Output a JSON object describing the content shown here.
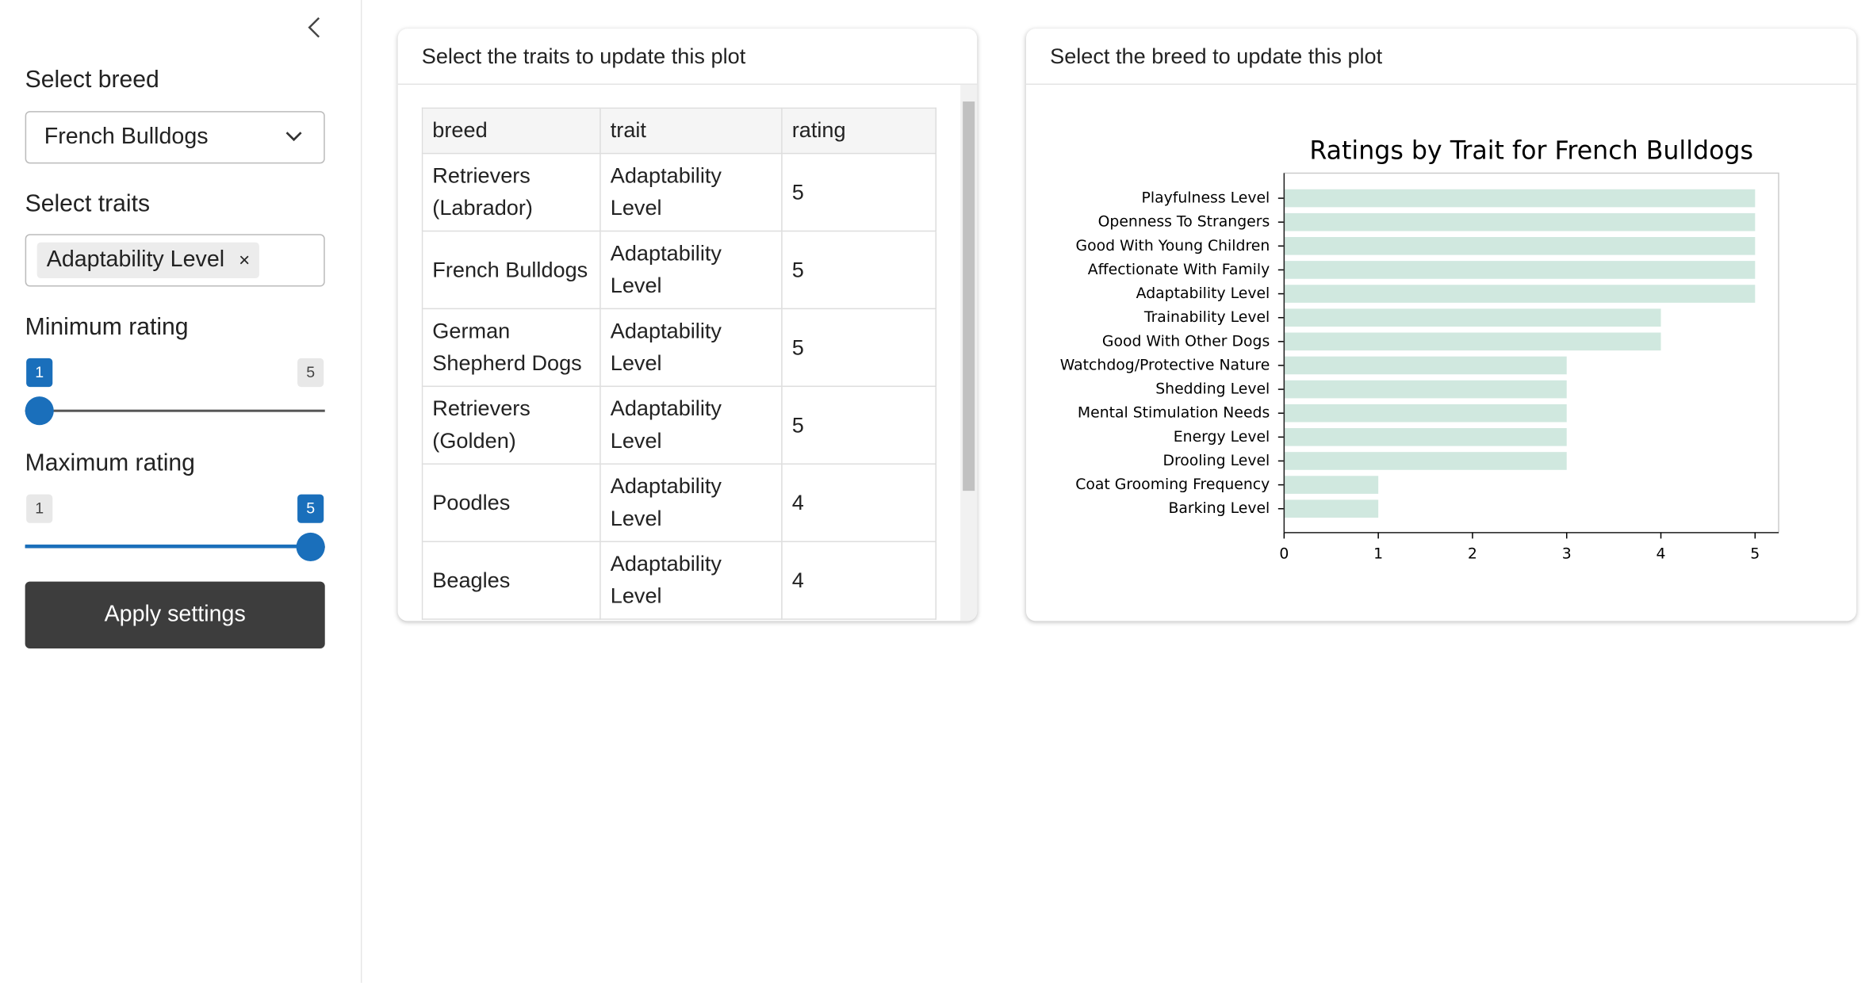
{
  "sidebar": {
    "breed_label": "Select breed",
    "breed_value": "French Bulldogs",
    "traits_label": "Select traits",
    "traits_selected": [
      "Adaptability Level"
    ],
    "sliders": [
      {
        "label": "Minimum rating",
        "min": 1,
        "max": 5,
        "value": 1
      },
      {
        "label": "Maximum rating",
        "min": 1,
        "max": 5,
        "value": 5
      }
    ],
    "button": "Apply settings"
  },
  "table_card": {
    "header": "Select the traits to update this plot",
    "columns": [
      "breed",
      "trait",
      "rating"
    ],
    "rows": [
      [
        "Retrievers (Labrador)",
        "Adaptability Level",
        5
      ],
      [
        "French Bulldogs",
        "Adaptability Level",
        5
      ],
      [
        "German Shepherd Dogs",
        "Adaptability Level",
        5
      ],
      [
        "Retrievers (Golden)",
        "Adaptability Level",
        5
      ],
      [
        "Poodles",
        "Adaptability Level",
        4
      ],
      [
        "Beagles",
        "Adaptability Level",
        4
      ]
    ]
  },
  "plot_card": {
    "header": "Select the breed to update this plot"
  },
  "chart_data": {
    "type": "barh",
    "title": "Ratings by Trait for French Bulldogs",
    "categories": [
      "Playfulness Level",
      "Openness To Strangers",
      "Good With Young Children",
      "Affectionate With Family",
      "Adaptability Level",
      "Trainability Level",
      "Good With Other Dogs",
      "Watchdog/Protective Nature",
      "Shedding Level",
      "Mental Stimulation Needs",
      "Energy Level",
      "Drooling Level",
      "Coat Grooming Frequency",
      "Barking Level"
    ],
    "values": [
      5,
      5,
      5,
      5,
      5,
      4,
      4,
      3,
      3,
      3,
      3,
      3,
      1,
      1
    ],
    "color": "#d0e8df",
    "xlim": [
      0,
      5.25
    ],
    "xticks": [
      0,
      1,
      2,
      3,
      4,
      5
    ]
  }
}
